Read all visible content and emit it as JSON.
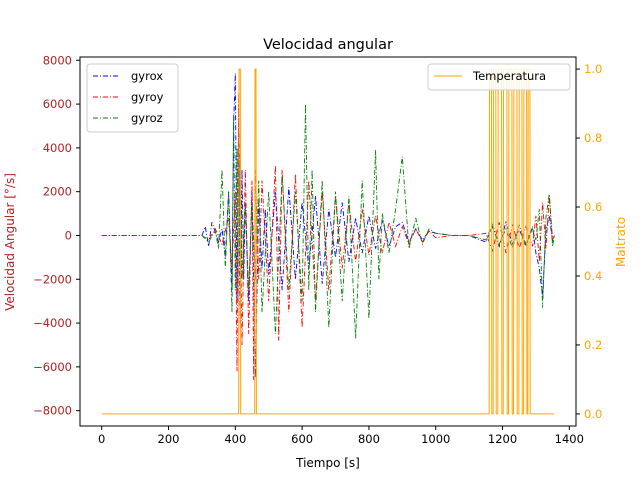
{
  "chart_data": {
    "type": "line",
    "title": "Velocidad angular",
    "xlabel": "Tiempo [s]",
    "ylabel": "Velocidad Angular [°/s]",
    "y2label": "Maltrato",
    "xlim": [
      -65,
      1420
    ],
    "ylim": [
      -8700,
      8150
    ],
    "y2lim": [
      -0.035,
      1.035
    ],
    "x_ticks": [
      0,
      200,
      400,
      600,
      800,
      1000,
      1200,
      1400
    ],
    "y_ticks": [
      -8000,
      -6000,
      -4000,
      -2000,
      0,
      2000,
      4000,
      6000,
      8000
    ],
    "y2_ticks": [
      0.0,
      0.2,
      0.4,
      0.6,
      0.8,
      1.0
    ],
    "y2_tick_labels": [
      "0.0",
      "0.2",
      "0.4",
      "0.6",
      "0.8",
      "1.0"
    ],
    "grid": false,
    "colors": {
      "left_axis": "#b22222",
      "right_axis": "#ffa500",
      "gyrox": "#0000ff",
      "gyroy": "#ff0000",
      "gyroz": "#008000",
      "temperatura": "#ffa500"
    },
    "legend_left": {
      "placement": "upper-left",
      "entries": [
        "gyrox",
        "gyroy",
        "gyroz"
      ]
    },
    "legend_right": {
      "placement": "upper-right",
      "entries": [
        "Temperatura"
      ]
    },
    "series": [
      {
        "name": "gyrox",
        "axis": "left",
        "x": [
          0,
          100,
          200,
          300,
          310,
          320,
          330,
          350,
          360,
          370,
          380,
          390,
          395,
          400,
          405,
          410,
          415,
          420,
          425,
          430,
          440,
          450,
          460,
          470,
          480,
          490,
          500,
          520,
          540,
          560,
          580,
          600,
          620,
          640,
          660,
          680,
          700,
          720,
          740,
          760,
          780,
          800,
          820,
          840,
          860,
          880,
          900,
          920,
          940,
          960,
          980,
          1000,
          1050,
          1100,
          1150,
          1170,
          1190,
          1210,
          1230,
          1250,
          1270,
          1290,
          1300,
          1310,
          1320,
          1330,
          1340,
          1350,
          1355
        ],
        "y": [
          0,
          0,
          0,
          0,
          400,
          -500,
          600,
          -300,
          300,
          -1000,
          2000,
          -2500,
          5000,
          7400,
          -3000,
          6000,
          -4000,
          3000,
          -2000,
          1500,
          -3000,
          2000,
          -6500,
          1500,
          -1500,
          1200,
          -1800,
          2000,
          -2500,
          2200,
          -2000,
          1500,
          -1500,
          1800,
          -2200,
          1200,
          -1000,
          1500,
          -1200,
          800,
          -800,
          900,
          -600,
          700,
          -500,
          400,
          600,
          -300,
          300,
          -200,
          200,
          100,
          0,
          0,
          -300,
          400,
          -500,
          600,
          -400,
          300,
          -500,
          400,
          -800,
          -1500,
          -2800,
          200,
          900,
          -300,
          0
        ]
      },
      {
        "name": "gyroy",
        "axis": "left",
        "x": [
          0,
          100,
          200,
          300,
          320,
          340,
          360,
          380,
          390,
          400,
          405,
          410,
          420,
          430,
          440,
          450,
          455,
          460,
          470,
          480,
          500,
          520,
          530,
          540,
          560,
          580,
          600,
          620,
          640,
          660,
          680,
          700,
          720,
          740,
          760,
          780,
          800,
          820,
          840,
          860,
          880,
          900,
          920,
          940,
          960,
          980,
          1000,
          1050,
          1100,
          1150,
          1170,
          1190,
          1210,
          1230,
          1250,
          1270,
          1290,
          1300,
          1310,
          1320,
          1330,
          1340,
          1350,
          1355
        ],
        "y": [
          0,
          0,
          0,
          0,
          -200,
          300,
          -400,
          800,
          -1500,
          2000,
          -6200,
          6500,
          -5000,
          3000,
          -4500,
          2500,
          -6600,
          3000,
          -2000,
          2500,
          -3000,
          3200,
          -4800,
          3000,
          -3500,
          2800,
          -4200,
          2500,
          -3000,
          2000,
          -2500,
          1800,
          -1500,
          1500,
          -1200,
          1200,
          -900,
          900,
          -800,
          600,
          -500,
          400,
          -400,
          300,
          -300,
          200,
          -100,
          0,
          0,
          100,
          -700,
          600,
          -800,
          500,
          -600,
          400,
          -500,
          900,
          -1200,
          1500,
          -600,
          1800,
          -200,
          0
        ]
      },
      {
        "name": "gyroz",
        "axis": "left",
        "x": [
          0,
          100,
          200,
          300,
          320,
          340,
          350,
          360,
          370,
          380,
          390,
          395,
          400,
          405,
          410,
          415,
          420,
          430,
          440,
          450,
          460,
          470,
          480,
          500,
          520,
          540,
          560,
          580,
          600,
          610,
          620,
          630,
          640,
          660,
          680,
          700,
          720,
          740,
          760,
          780,
          800,
          820,
          830,
          840,
          860,
          880,
          900,
          920,
          940,
          960,
          980,
          1000,
          1050,
          1100,
          1150,
          1170,
          1190,
          1210,
          1230,
          1250,
          1270,
          1290,
          1300,
          1310,
          1320,
          1330,
          1340,
          1350,
          1355
        ],
        "y": [
          0,
          0,
          0,
          0,
          -300,
          200,
          -600,
          3000,
          -1500,
          2000,
          -3500,
          5500,
          -2500,
          4000,
          -3000,
          3500,
          -2000,
          1500,
          -2500,
          1500,
          -2000,
          2500,
          -3500,
          2000,
          -4500,
          2800,
          -2500,
          2000,
          -3000,
          6000,
          -2500,
          3000,
          -3500,
          2500,
          -4200,
          2000,
          -3000,
          1800,
          -4700,
          2500,
          -3800,
          3900,
          -2000,
          1000,
          -800,
          1200,
          3600,
          -600,
          800,
          -400,
          300,
          100,
          0,
          0,
          -200,
          500,
          -400,
          300,
          -600,
          500,
          -400,
          300,
          -200,
          1200,
          -3300,
          800,
          1900,
          -500,
          0
        ]
      },
      {
        "name": "Temperatura",
        "axis": "right",
        "x": [
          0,
          410,
          411,
          415,
          416,
          458,
          459,
          462,
          463,
          1160,
          1161,
          1167,
          1168,
          1172,
          1173,
          1180,
          1181,
          1186,
          1187,
          1197,
          1198,
          1202,
          1203,
          1213,
          1214,
          1218,
          1219,
          1228,
          1229,
          1233,
          1234,
          1243,
          1244,
          1249,
          1250,
          1258,
          1259,
          1263,
          1264,
          1272,
          1273,
          1276,
          1277,
          1282,
          1283,
          1355
        ],
        "y": [
          0,
          0,
          1,
          1,
          0,
          0,
          1,
          1,
          0,
          0,
          1,
          1,
          0,
          0,
          1,
          1,
          0,
          0,
          1,
          1,
          0,
          0,
          1,
          1,
          0,
          0,
          1,
          1,
          0,
          0,
          1,
          1,
          0,
          0,
          1,
          1,
          0,
          0,
          1,
          1,
          0,
          0,
          1,
          1,
          0,
          0
        ]
      }
    ]
  }
}
